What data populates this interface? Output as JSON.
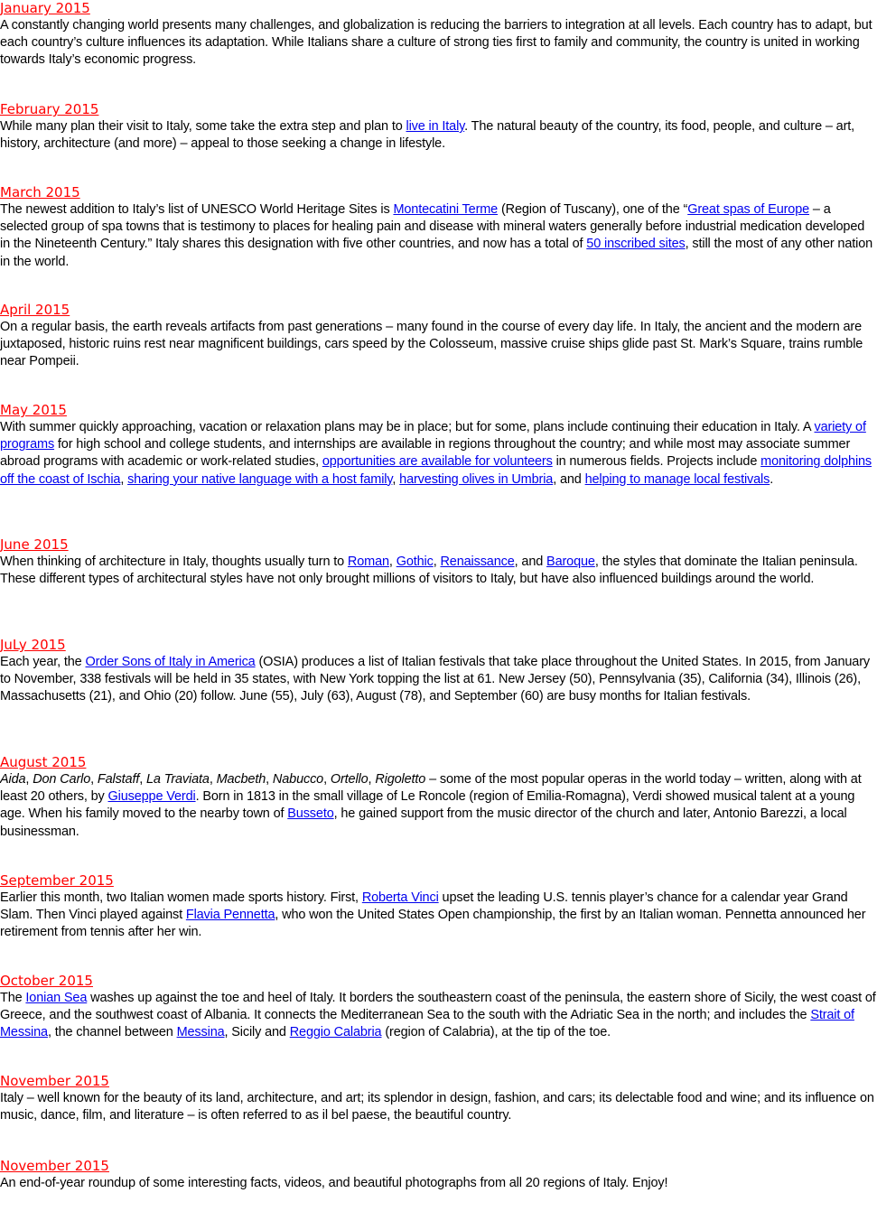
{
  "entries": [
    {
      "title": "January 2015",
      "segments": [
        {
          "text": "  A constantly changing world presents many challenges, and globalization is reducing the barriers to integration at all levels. Each country has to adapt, but each country’s culture influences its adaptation. While Italians share a culture of strong ties first to family and community, the country is united in working towards Italy’s economic progress."
        }
      ]
    },
    {
      "title": "February 2015",
      "segments": [
        {
          "text": "  While many plan their visit to Italy, some take the extra step and plan to "
        },
        {
          "text": "live in Italy",
          "link": true
        },
        {
          "text": ". The natural beauty of the country, its food, people, and culture – art, history, architecture (and more) – appeal to those seeking a change in lifestyle."
        }
      ]
    },
    {
      "title": "March 2015",
      "segments": [
        {
          "text": " The newest addition to Italy’s list of UNESCO World Heritage Sites is "
        },
        {
          "text": "Montecatini Terme",
          "link": true
        },
        {
          "text": " (Region of Tuscany), one of the “"
        },
        {
          "text": "Great spas of Europe",
          "link": true
        },
        {
          "text": " – a selected group of spa towns that is testimony to places for healing pain and disease with mineral waters generally before industrial medication developed in the Nineteenth Century.” Italy shares this designation with five other countries, and now has a total of "
        },
        {
          "text": "50 inscribed sites",
          "link": true
        },
        {
          "text": ", still the most of any other nation in the world."
        }
      ]
    },
    {
      "title": "April 2015",
      "segments": [
        {
          "text": " On a regular basis, the earth reveals artifacts from past generations – many found in the course of every day life. In Italy, the ancient and the modern are juxtaposed, historic ruins rest near magnificent buildings, cars speed by the Colosseum, massive cruise ships glide past St. Mark’s Square, trains rumble near Pompeii."
        }
      ]
    },
    {
      "title": "May 2015",
      "segments": [
        {
          "text": " With summer quickly approaching, vacation or relaxation plans may be in place; but for some, plans include continuing their education in Italy. A "
        },
        {
          "text": "variety of programs",
          "link": true
        },
        {
          "text": " for high school and college students, and internships are available in regions throughout the country; and while most may associate summer abroad programs with academic or work-related studies, "
        },
        {
          "text": "opportunities are available for volunteers",
          "link": true
        },
        {
          "text": " in numerous fields. Projects include "
        },
        {
          "text": "monitoring dolphins off the coast of Ischia",
          "link": true
        },
        {
          "text": ", "
        },
        {
          "text": "sharing your native language with a host family",
          "link": true
        },
        {
          "text": ", "
        },
        {
          "text": "harvesting olives in Umbria",
          "link": true
        },
        {
          "text": ", and "
        },
        {
          "text": "helping to manage local festivals",
          "link": true
        },
        {
          "text": "."
        }
      ]
    },
    {
      "title": "June 2015",
      "segments": [
        {
          "text": " When thinking of architecture in Italy, thoughts usually turn to "
        },
        {
          "text": "Roman",
          "link": true
        },
        {
          "text": ", "
        },
        {
          "text": "Gothic",
          "link": true
        },
        {
          "text": ", "
        },
        {
          "text": "Renaissance",
          "link": true
        },
        {
          "text": ", and "
        },
        {
          "text": "Baroque",
          "link": true
        },
        {
          "text": ", the styles that dominate the Italian peninsula. These different types of architectural styles have not only brought millions of visitors to Italy, but have also influenced buildings around the world."
        }
      ]
    },
    {
      "title": "JuLy 2015",
      "segments": [
        {
          "text": " Each year, the "
        },
        {
          "text": "Order Sons of Italy in America",
          "link": true
        },
        {
          "text": " (OSIA) produces a list of Italian festivals that take place throughout the United States. In 2015, from January to November, 338 festivals will be held in 35 states, with New York topping the list at 61. New Jersey (50), Pennsylvania (35), California (34), Illinois (26), Massachusetts (21), and Ohio (20) follow. June (55), July (63), August (78), and September (60) are busy months for Italian festivals."
        }
      ]
    },
    {
      "title": "August 2015",
      "segments": [
        {
          "text": " Aida",
          "italic": true
        },
        {
          "text": ", "
        },
        {
          "text": "Don Carlo",
          "italic": true
        },
        {
          "text": ", "
        },
        {
          "text": "Falstaff",
          "italic": true
        },
        {
          "text": ", "
        },
        {
          "text": "La Traviata",
          "italic": true
        },
        {
          "text": ", "
        },
        {
          "text": "Macbeth",
          "italic": true
        },
        {
          "text": ", "
        },
        {
          "text": "Nabucco",
          "italic": true
        },
        {
          "text": ", "
        },
        {
          "text": "Ortello",
          "italic": true
        },
        {
          "text": ", "
        },
        {
          "text": "Rigoletto",
          "italic": true
        },
        {
          "text": " – some of the most popular operas in the world today – written, along with at least 20 others, by "
        },
        {
          "text": "Giuseppe Verdi",
          "link": true
        },
        {
          "text": ". Born in 1813 in the small village of Le Roncole (region of Emilia-Romagna), Verdi showed musical talent at a young age. When his family moved to the nearby town of "
        },
        {
          "text": "Busseto",
          "link": true
        },
        {
          "text": ", he gained support from the music director of the church and later, Antonio Barezzi, a local businessman."
        }
      ]
    },
    {
      "title": "September 2015",
      "segments": [
        {
          "text": " Earlier this month, two Italian women made sports history. First, "
        },
        {
          "text": "Roberta Vinci",
          "link": true
        },
        {
          "text": " upset the leading U.S. tennis player’s chance for a calendar year Grand Slam. Then Vinci played against "
        },
        {
          "text": "Flavia Pennetta",
          "link": true
        },
        {
          "text": ", who won the United States Open championship, the first by an Italian woman. Pennetta announced her retirement from tennis after her win."
        }
      ]
    },
    {
      "title": "October 2015",
      "segments": [
        {
          "text": " The "
        },
        {
          "text": "Ionian Sea",
          "link": true
        },
        {
          "text": " washes up against the toe and heel of Italy. It borders the southeastern coast of the peninsula, the eastern shore of Sicily, the west coast of Greece, and the southwest coast of Albania. It connects the Mediterranean Sea to the south with the Adriatic Sea in the north; and includes the "
        },
        {
          "text": "Strait of Messina",
          "link": true
        },
        {
          "text": ", the channel between "
        },
        {
          "text": "Messina",
          "link": true
        },
        {
          "text": ", Sicily and "
        },
        {
          "text": "Reggio Calabria",
          "link": true
        },
        {
          "text": " (region of Calabria), at the tip of the toe."
        }
      ]
    },
    {
      "title": "November 2015",
      "segments": [
        {
          "text": " Italy – well known for the beauty of its land, architecture, and art; its splendor in design, fashion, and cars; its delectable food and wine; and its influence on music, dance, film, and literature – is often referred to as il bel paese, the beautiful country."
        }
      ]
    },
    {
      "title": "November 2015",
      "segments": [
        {
          "text": "  An end-of-year roundup of some interesting facts, videos, and beautiful photographs from all 20 regions of Italy. Enjoy!"
        }
      ]
    }
  ]
}
